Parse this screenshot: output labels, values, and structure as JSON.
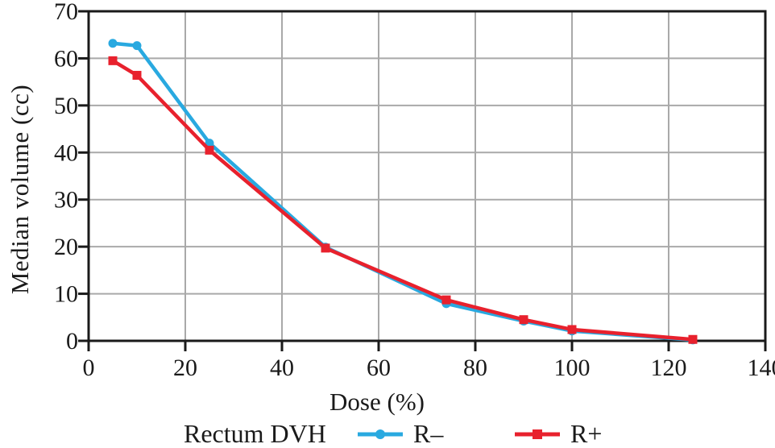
{
  "chart_data": {
    "type": "line",
    "title": "Rectum DVH",
    "xlabel": "Dose (%)",
    "ylabel": "Median volume (cc)",
    "xlim": [
      0,
      140
    ],
    "ylim": [
      0,
      70
    ],
    "x_ticks": [
      0,
      20,
      40,
      60,
      80,
      100,
      120,
      140
    ],
    "y_ticks": [
      0,
      10,
      20,
      30,
      40,
      50,
      60,
      70
    ],
    "grid": true,
    "legend_position": "bottom",
    "x": [
      5,
      10,
      25,
      49,
      74,
      90,
      100,
      125
    ],
    "series": [
      {
        "name": "R–",
        "marker": "circle",
        "color": "#29a9e0",
        "values": [
          63.2,
          62.7,
          42.0,
          19.9,
          7.9,
          4.2,
          2.1,
          0.2
        ]
      },
      {
        "name": "R+",
        "marker": "square",
        "color": "#e8212d",
        "values": [
          59.5,
          56.4,
          40.5,
          19.7,
          8.7,
          4.5,
          2.4,
          0.3
        ]
      }
    ],
    "colors": {
      "axis": "#1a1a1a",
      "grid": "#a9a9a9",
      "background": "#ffffff",
      "text": "#1a1a1a"
    }
  }
}
